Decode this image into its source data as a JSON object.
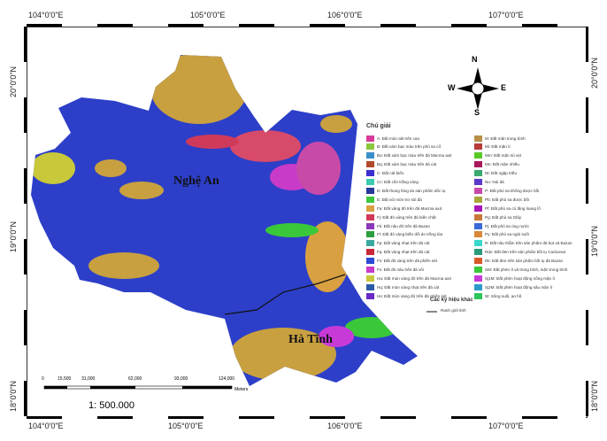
{
  "coords": {
    "top": [
      "104°0'0\"E",
      "105°0'0\"E",
      "106°0'0\"E",
      "107°0'0\"E"
    ],
    "bottom": [
      "104°0'0\"E",
      "105°0'0\"E",
      "106°0'0\"E",
      "107°0'0\"E"
    ],
    "left": [
      "20°0'0\"N",
      "19°0'0\"N",
      "18°0'0\"N"
    ],
    "right": [
      "20°0'0\"N",
      "19°0'0\"N",
      "18°0'0\"N"
    ]
  },
  "places": {
    "nghe_an": "Nghệ An",
    "ha_tinh": "Hà Tĩnh"
  },
  "compass": {
    "n": "N",
    "s": "S",
    "e": "E",
    "w": "W"
  },
  "legend": {
    "title": "Chú giải",
    "left": [
      {
        "label": "A: Đất mùn alit trên cao",
        "color": "#d63a9a"
      },
      {
        "label": "B: Đất xám bạc màu trên phù sa cổ",
        "color": "#8cc63e"
      },
      {
        "label": "Ba: Đất xám bạc màu trên đá Macma axit",
        "color": "#3a8fc8"
      },
      {
        "label": "Bq: Đất xám bạc màu trên đá cát",
        "color": "#b04a2a"
      },
      {
        "label": "C: Đất cát biển",
        "color": "#3a2fd0"
      },
      {
        "label": "Cc: Đất cồn trắng vàng",
        "color": "#3ccab0"
      },
      {
        "label": "D: Đất thung lũng do sản phẩm dốc tụ",
        "color": "#24399a"
      },
      {
        "label": "E: Đất xói mòn trơ sỏi đá",
        "color": "#3cc83c"
      },
      {
        "label": "Fa: Đất vàng đỏ trên đá Macma axit",
        "color": "#d8a040"
      },
      {
        "label": "Fj: Đất đỏ vàng trên đá biến chất",
        "color": "#d03a5a"
      },
      {
        "label": "Fk: Đất nâu đỏ trên đá Bazan",
        "color": "#8a3ab8"
      },
      {
        "label": "Fl: Đất đỏ vàng biến đổi do trồng lúa",
        "color": "#2aa040"
      },
      {
        "label": "Fp: Đất vàng nhạt trên đá cát",
        "color": "#3aa8a0"
      },
      {
        "label": "Fq: Đất vàng nhạt trên đá cát",
        "color": "#c8283a"
      },
      {
        "label": "Fs: Đất đỏ vàng trên đá phiến sét",
        "color": "#2a4ad8"
      },
      {
        "label": "Fv: Đất đỏ nâu trên đá vôi",
        "color": "#c83ac8"
      },
      {
        "label": "Ha: Đất mùn vàng đỏ trên đá Macma axit",
        "color": "#c8c83a"
      },
      {
        "label": "Hq: Đất mùn vàng nhạt trên đá cát",
        "color": "#2a5aa8"
      },
      {
        "label": "Hs: Đất mùn vàng đỏ trên đá phiến sét",
        "color": "#6a2ac8"
      }
    ],
    "right": [
      {
        "label": "M: Đất mặn trung bình",
        "color": "#b8904a"
      },
      {
        "label": "Mi: Đất mặn ít",
        "color": "#b83a3a"
      },
      {
        "label": "Mm: Đất mặn sú vẹt",
        "color": "#5ac828"
      },
      {
        "label": "Mn: Đất mặn nhiều",
        "color": "#a8185a"
      },
      {
        "label": "Nt: Đất ngập triều",
        "color": "#3aa870"
      },
      {
        "label": "Nu: Núi đá",
        "color": "#5a3ac8"
      },
      {
        "label": "P: Đất phù sa không được bồi",
        "color": "#c84aa8"
      },
      {
        "label": "Pb: Đất phù sa được bồi",
        "color": "#a8a83a"
      },
      {
        "label": "Pf: Đất phù sa có tầng loang lổ",
        "color": "#a818b8"
      },
      {
        "label": "Pg: Đất phù sa Glây",
        "color": "#c8783a"
      },
      {
        "label": "Pj: Đất phù sa úng nước",
        "color": "#3a6ad8"
      },
      {
        "label": "Py: Đất phù sa ngòi suối",
        "color": "#d8883a"
      },
      {
        "label": "R: Đất nâu thẫm trên sản phẩm đá bọt và Bazan",
        "color": "#3ad8c8"
      },
      {
        "label": "Rdv: Đất đen trên sản phẩm bồi tụ Cacbonat",
        "color": "#2a9a7a"
      },
      {
        "label": "Rk: Đất đen trên sản phẩm bồi tụ đá Bazan",
        "color": "#d85a2a"
      },
      {
        "label": "SM: Đất phèn ít và trung bình, mặn trung bình",
        "color": "#3ac83a"
      },
      {
        "label": "Sj1M: Đất phèn hoạt động nông mặn ít",
        "color": "#c83ad8"
      },
      {
        "label": "Sj2M: Đất phèn hoạt động sâu mặn ít",
        "color": "#2a9ac8"
      },
      {
        "label": "W: Sông suối, ao hồ",
        "color": "#2ac85a"
      }
    ],
    "other_title": "Các ký hiệu khác",
    "boundary": "Ranh giới tỉnh"
  },
  "scale": {
    "ticks": [
      "0",
      "15,500",
      "31,000",
      "62,000",
      "93,000",
      "124,000"
    ],
    "unit": "Meters",
    "ratio": "1: 500.000"
  }
}
